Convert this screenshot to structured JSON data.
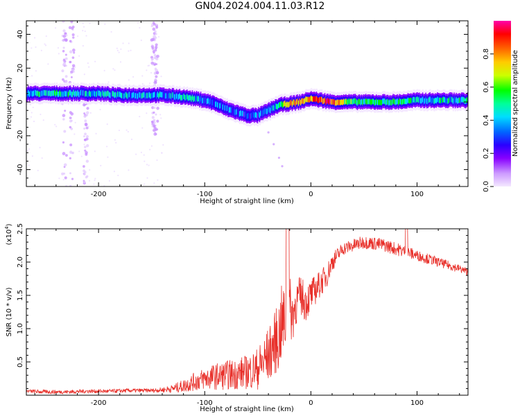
{
  "title": "GN04.2024.004.11.03.R12",
  "colors": {
    "snr_line": "#e8302a",
    "frame": "#000000"
  },
  "chart_data": [
    {
      "type": "heatmap",
      "xlabel": "Height of straight line (km)",
      "ylabel": "Frequency (Hz)",
      "xlim": [
        -268,
        148
      ],
      "ylim": [
        -50,
        48
      ],
      "x_ticks": [
        -200,
        -100,
        0,
        100
      ],
      "y_ticks": [
        -40,
        -20,
        0,
        20,
        40
      ],
      "colorbar": {
        "label": "Normalized spectral amplitude",
        "range": [
          0.0,
          1.0
        ],
        "ticks": [
          0.0,
          0.2,
          0.4,
          0.6,
          0.8
        ],
        "tick_labels": [
          "0.0",
          "0.2",
          "0.4",
          "0.6",
          "0.8"
        ],
        "colormap": [
          "#f4e8ff",
          "#cc99ff",
          "#8800ff",
          "#2a00ff",
          "#0066ff",
          "#00ddff",
          "#00ff99",
          "#00ff00",
          "#ccff00",
          "#ffcc00",
          "#ff6600",
          "#ff0000",
          "#ff00aa"
        ]
      },
      "ridge": {
        "x": [
          -268,
          -240,
          -220,
          -200,
          -180,
          -160,
          -140,
          -120,
          -100,
          -90,
          -80,
          -70,
          -60,
          -50,
          -40,
          -30,
          -20,
          -10,
          0,
          10,
          20,
          40,
          60,
          80,
          100,
          120,
          148
        ],
        "y": [
          5,
          5,
          5,
          5,
          4,
          4,
          4,
          3,
          1,
          -1,
          -4,
          -6,
          -8,
          -8,
          -5,
          -2,
          -1,
          0,
          2,
          1,
          0,
          0,
          0,
          0,
          1,
          1,
          1
        ],
        "amplitude": [
          0.45,
          0.5,
          0.45,
          0.45,
          0.45,
          0.45,
          0.4,
          0.5,
          0.4,
          0.35,
          0.35,
          0.35,
          0.3,
          0.35,
          0.4,
          0.55,
          0.75,
          0.8,
          0.85,
          0.9,
          0.9,
          0.55,
          0.55,
          0.55,
          0.5,
          0.5,
          0.5
        ]
      },
      "scatter_bands": {
        "x": [
          -232,
          -225,
          -212,
          -148,
          -146
        ],
        "y_range": [
          [
            -50,
            48
          ],
          [
            -50,
            48
          ],
          [
            -50,
            10
          ],
          [
            -20,
            48
          ],
          [
            -20,
            48
          ]
        ],
        "amplitude": 0.1
      },
      "branch": {
        "x": [
          -40,
          -35,
          -30,
          -27
        ],
        "y": [
          -18,
          -25,
          -33,
          -38
        ],
        "amplitude": 0.1
      }
    },
    {
      "type": "line",
      "xlabel": "Height of straight line (km)",
      "ylabel": "SNR (10 * v/v)",
      "multiplier_label": "(x10",
      "multiplier_exp": "4",
      "multiplier_close": ")",
      "xlim": [
        -268,
        148
      ],
      "ylim": [
        0,
        2.5
      ],
      "x_ticks": [
        -200,
        -100,
        0,
        100
      ],
      "y_ticks": [
        0.5,
        1.0,
        1.5,
        2.0,
        2.5
      ],
      "y_tick_labels": [
        "0.5",
        "1.0",
        "1.5",
        "2.0",
        "2.5"
      ],
      "series": [
        {
          "x": [
            -268,
            -250,
            -230,
            -210,
            -190,
            -170,
            -150,
            -140,
            -130,
            -120,
            -110,
            -100,
            -90,
            -80,
            -70,
            -60,
            -50,
            -45,
            -40,
            -35,
            -30,
            -28,
            -25,
            -22,
            -20,
            -17,
            -15,
            -10,
            -5,
            0,
            5,
            10,
            15,
            20,
            25,
            30,
            40,
            50,
            60,
            70,
            80,
            90,
            100,
            110,
            120,
            130,
            140,
            148
          ],
          "y": [
            0.06,
            0.05,
            0.05,
            0.06,
            0.06,
            0.07,
            0.07,
            0.08,
            0.1,
            0.14,
            0.2,
            0.25,
            0.28,
            0.3,
            0.32,
            0.35,
            0.4,
            0.5,
            0.6,
            0.75,
            0.9,
            1.05,
            1.1,
            1.2,
            1.3,
            1.2,
            1.35,
            1.5,
            1.4,
            1.5,
            1.6,
            1.7,
            1.8,
            2.0,
            2.1,
            2.2,
            2.25,
            2.3,
            2.28,
            2.25,
            2.2,
            2.15,
            2.1,
            2.05,
            2.0,
            1.95,
            1.9,
            1.85
          ],
          "noise": [
            0.03,
            0.03,
            0.03,
            0.03,
            0.03,
            0.03,
            0.03,
            0.04,
            0.06,
            0.1,
            0.14,
            0.17,
            0.2,
            0.22,
            0.24,
            0.26,
            0.32,
            0.38,
            0.42,
            0.45,
            0.55,
            0.6,
            0.55,
            0.5,
            0.5,
            0.4,
            0.35,
            0.3,
            0.3,
            0.25,
            0.22,
            0.2,
            0.18,
            0.15,
            0.12,
            0.1,
            0.1,
            0.1,
            0.1,
            0.1,
            0.1,
            0.1,
            0.08,
            0.08,
            0.07,
            0.07,
            0.06,
            0.06
          ]
        }
      ]
    }
  ]
}
